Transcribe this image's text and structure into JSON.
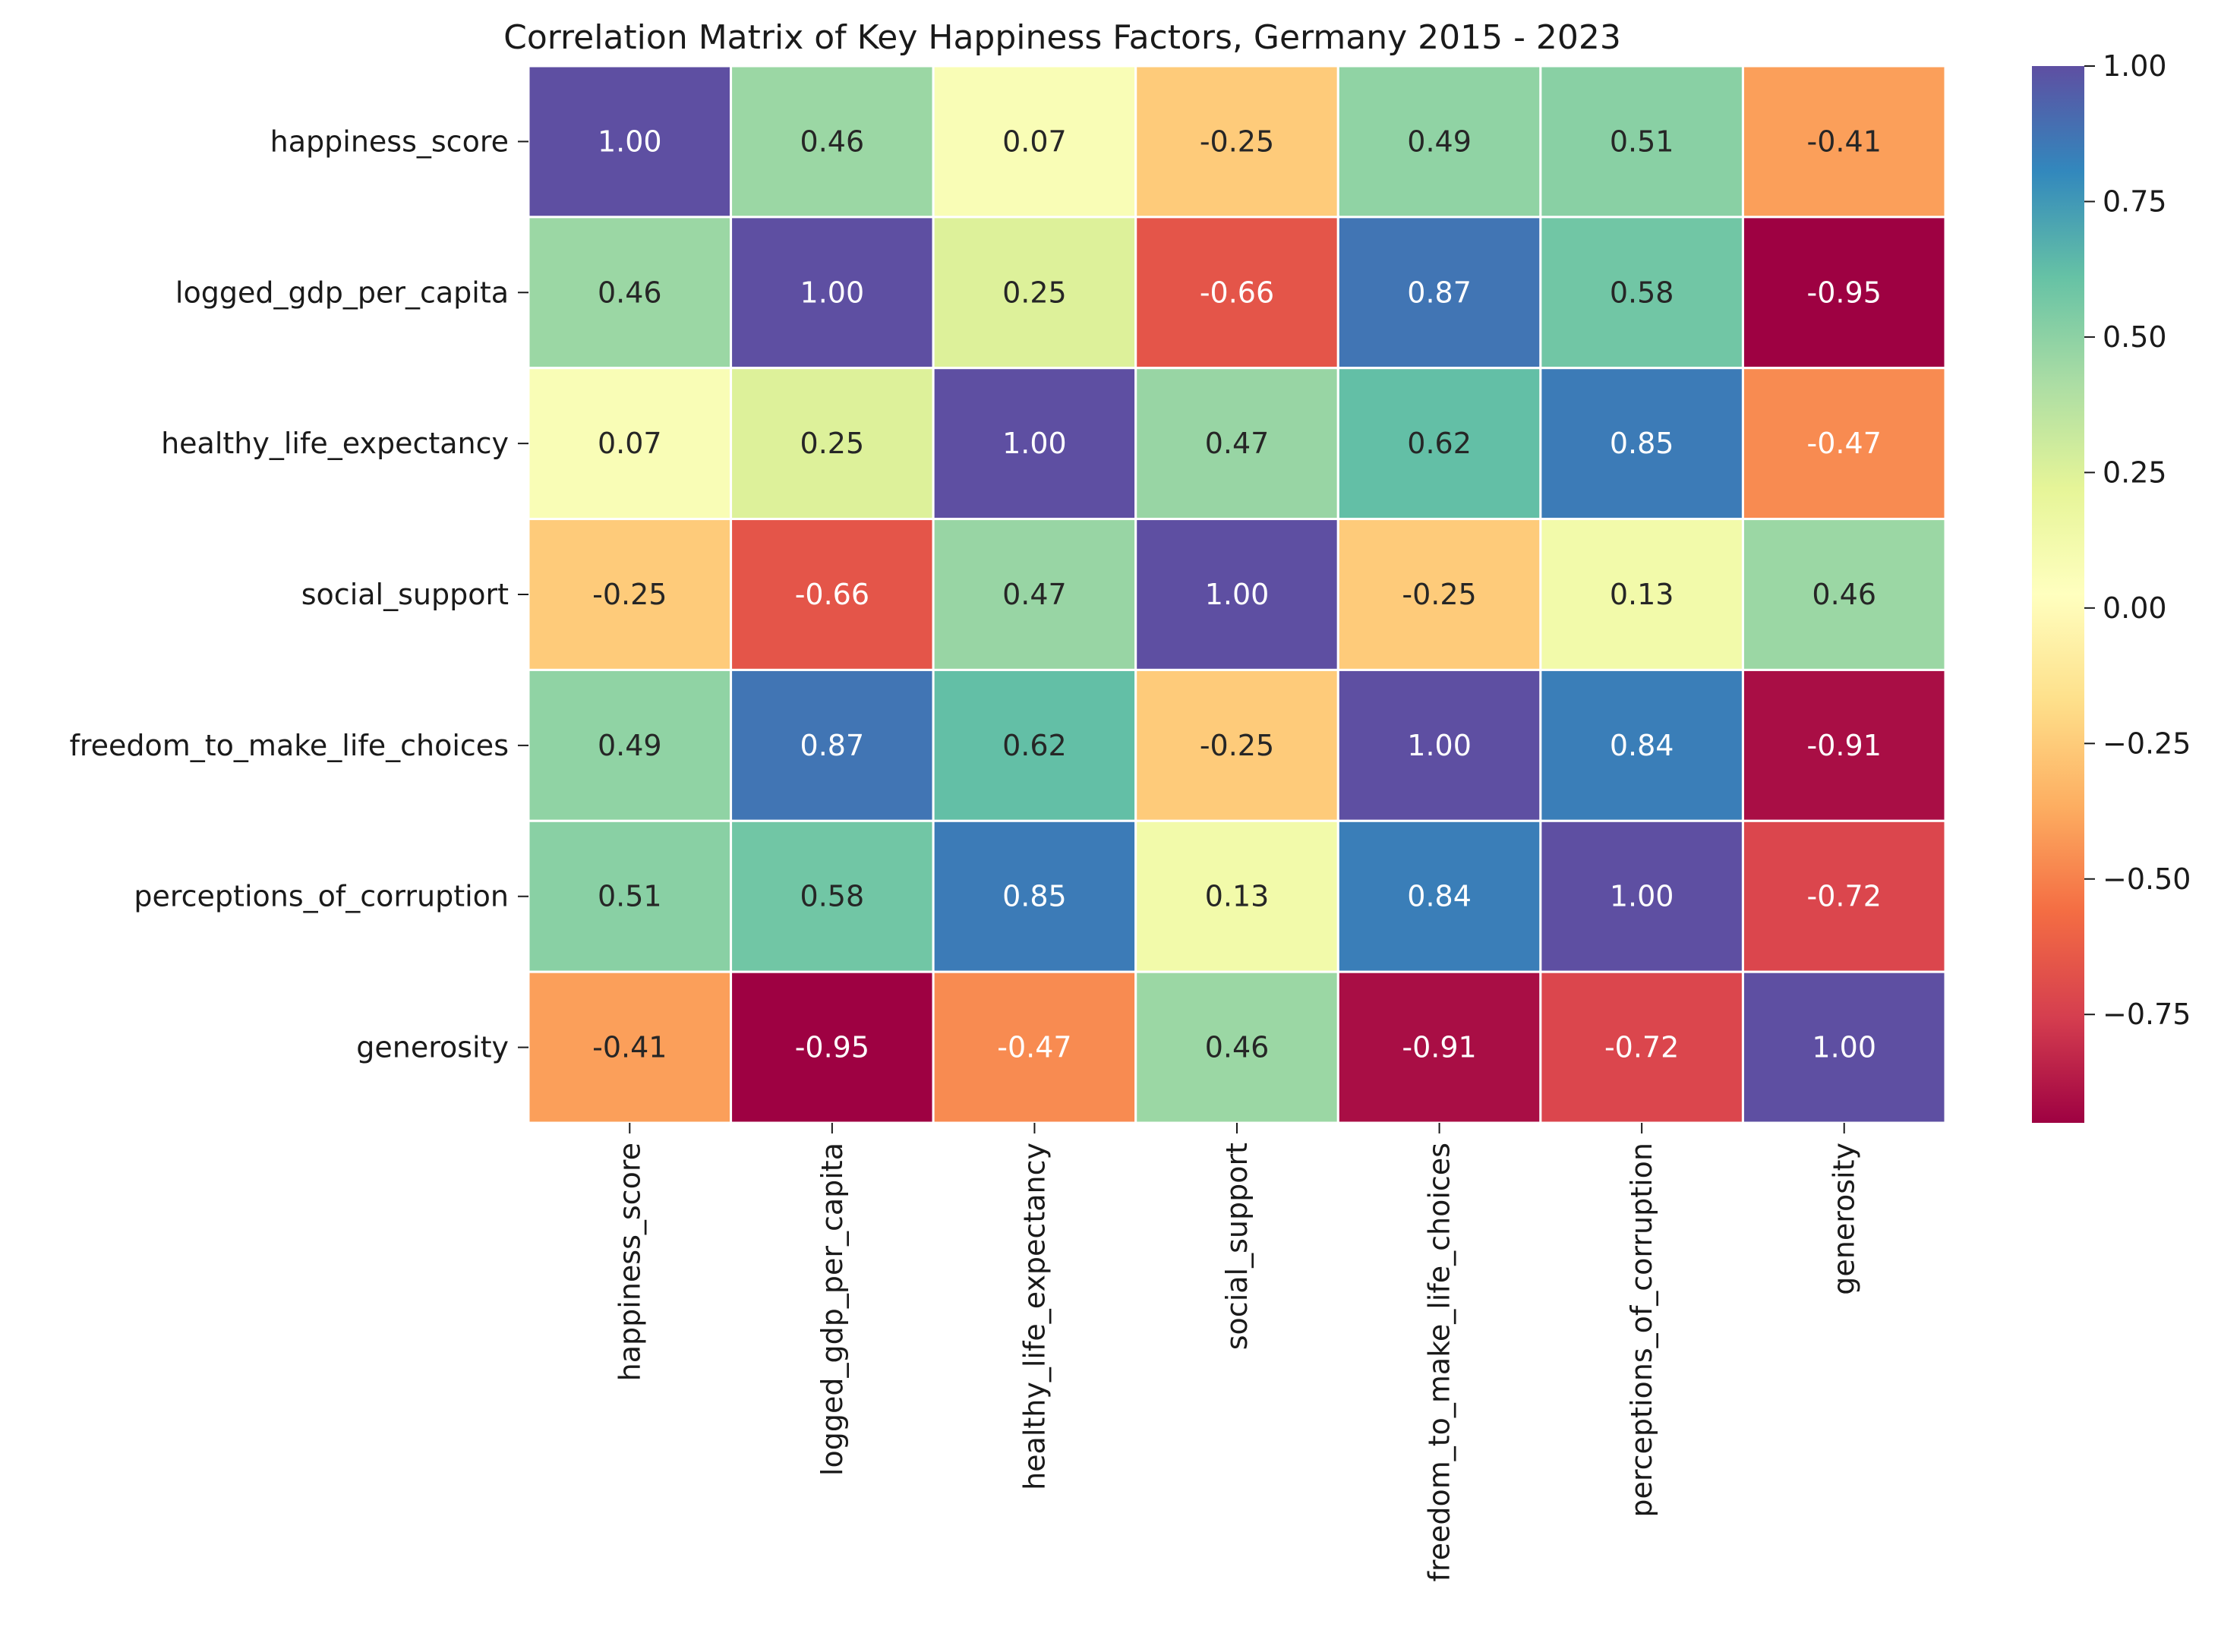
{
  "chart_data": {
    "type": "heatmap",
    "title": "Correlation Matrix of Key Happiness Factors, Germany 2015 - 2023",
    "xlabel": "",
    "ylabel": "",
    "rows": [
      "happiness_score",
      "logged_gdp_per_capita",
      "healthy_life_expectancy",
      "social_support",
      "freedom_to_make_life_choices",
      "perceptions_of_corruption",
      "generosity"
    ],
    "columns": [
      "happiness_score",
      "logged_gdp_per_capita",
      "healthy_life_expectancy",
      "social_support",
      "freedom_to_make_life_choices",
      "perceptions_of_corruption",
      "generosity"
    ],
    "values": [
      [
        1.0,
        0.46,
        0.07,
        -0.25,
        0.49,
        0.51,
        -0.41
      ],
      [
        0.46,
        1.0,
        0.25,
        -0.66,
        0.87,
        0.58,
        -0.95
      ],
      [
        0.07,
        0.25,
        1.0,
        0.47,
        0.62,
        0.85,
        -0.47
      ],
      [
        -0.25,
        -0.66,
        0.47,
        1.0,
        -0.25,
        0.13,
        0.46
      ],
      [
        0.49,
        0.87,
        0.62,
        -0.25,
        1.0,
        0.84,
        -0.91
      ],
      [
        0.51,
        0.58,
        0.85,
        0.13,
        0.84,
        1.0,
        -0.72
      ],
      [
        -0.41,
        -0.95,
        -0.47,
        0.46,
        -0.91,
        -0.72,
        1.0
      ]
    ],
    "value_format": "0.00",
    "colormap": "Spectral",
    "colormap_stops": [
      "#9e0142",
      "#d53e4f",
      "#f46d43",
      "#fdae61",
      "#fee08b",
      "#ffffbf",
      "#e6f598",
      "#abdda4",
      "#66c2a5",
      "#3288bd",
      "#5e4fa2"
    ],
    "vmin": -0.95,
    "vmax": 1.0,
    "cell_border_color": "#ffffff",
    "colorbar": {
      "ticks": [
        1.0,
        0.75,
        0.5,
        0.25,
        0.0,
        -0.25,
        -0.5,
        -0.75
      ],
      "tick_labels": [
        "1.00",
        "0.75",
        "0.50",
        "0.25",
        "0.00",
        "−0.25",
        "−0.50",
        "−0.75"
      ]
    }
  }
}
